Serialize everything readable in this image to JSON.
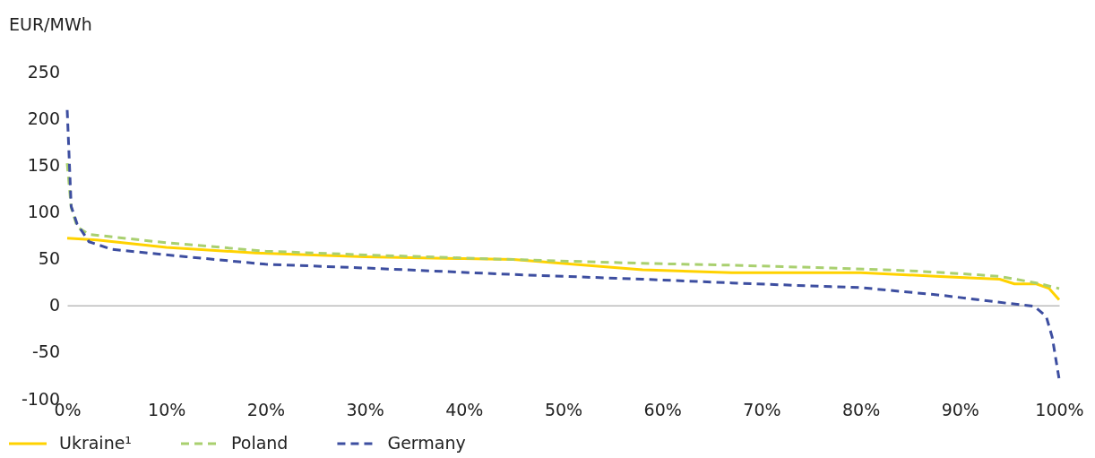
{
  "chart_data": {
    "type": "line",
    "ylabel": "EUR/MWh",
    "xlim": [
      0,
      100
    ],
    "xticks": [
      {
        "value": 0,
        "label": "0%"
      },
      {
        "value": 10,
        "label": "10%"
      },
      {
        "value": 20,
        "label": "20%"
      },
      {
        "value": 30,
        "label": "30%"
      },
      {
        "value": 40,
        "label": "40%"
      },
      {
        "value": 50,
        "label": "50%"
      },
      {
        "value": 60,
        "label": "60%"
      },
      {
        "value": 70,
        "label": "70%"
      },
      {
        "value": 80,
        "label": "80%"
      },
      {
        "value": 90,
        "label": "90%"
      },
      {
        "value": 100,
        "label": "100%"
      }
    ],
    "ylim": [
      -100,
      250
    ],
    "yticks": [
      -100,
      -50,
      0,
      50,
      100,
      150,
      200,
      250
    ],
    "legend": "bottom left",
    "marker": "none",
    "series": [
      {
        "name": "Ukraine¹",
        "color": "#ffd200",
        "line_style": "solid",
        "x": [
          0,
          3,
          10,
          19,
          30,
          40,
          45,
          58,
          67,
          77,
          80,
          88,
          94,
          95.5,
          97.7,
          99,
          100
        ],
        "values": [
          72,
          70,
          62,
          56,
          52,
          50,
          49,
          38,
          35,
          35,
          35,
          31,
          28,
          23,
          23,
          18,
          6
        ]
      },
      {
        "name": "Poland",
        "color": "#a9d06f",
        "line_style": "dashed",
        "x": [
          0,
          0.4,
          1,
          2.2,
          10,
          20,
          30,
          45,
          58,
          67,
          77,
          85,
          90,
          94,
          97.7,
          100
        ],
        "values": [
          152,
          105,
          84,
          76,
          67,
          58,
          54,
          49,
          45,
          43,
          40,
          37,
          34,
          31,
          24,
          18
        ]
      },
      {
        "name": "Germany",
        "color": "#3d4ea0",
        "line_style": "dashed",
        "x": [
          0,
          0.4,
          1,
          2.2,
          4.5,
          12,
          20,
          30,
          45,
          58,
          67,
          77,
          80,
          88,
          95,
          97.5,
          98.7,
          99.3,
          100
        ],
        "values": [
          209,
          106,
          87,
          68,
          60,
          52,
          44,
          40,
          33,
          28,
          24,
          20,
          19,
          11,
          2,
          -1,
          -12,
          -34,
          -79
        ]
      }
    ]
  }
}
